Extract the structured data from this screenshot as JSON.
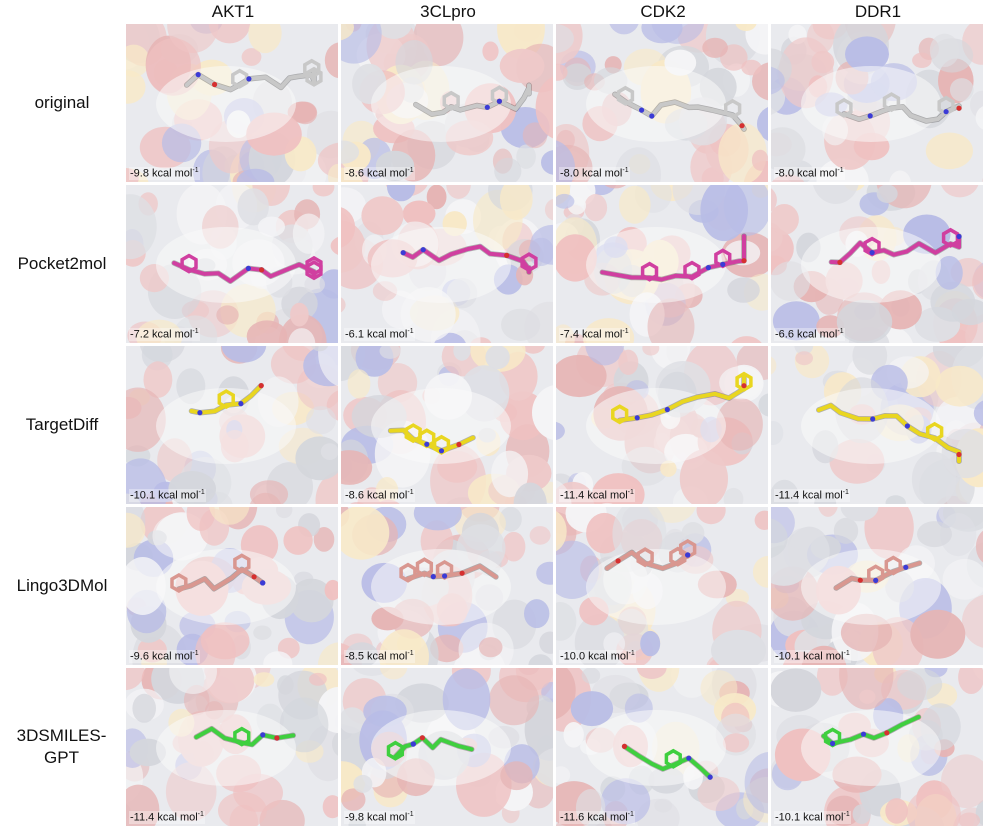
{
  "figure": {
    "targets": [
      "AKT1",
      "3CLpro",
      "CDK2",
      "DDR1"
    ],
    "methods": [
      {
        "label": "original",
        "color": "#c8c8c8",
        "scores": [
          "-9.8",
          "-8.6",
          "-8.0",
          "-8.0"
        ]
      },
      {
        "label": "Pocket2mol",
        "color": "#d03fa0",
        "scores": [
          "-7.2",
          "-6.1",
          "-7.4",
          "-6.6"
        ]
      },
      {
        "label": "TargetDiff",
        "color": "#e9d620",
        "scores": [
          "-10.1",
          "-8.6",
          "-11.4",
          "-11.4"
        ]
      },
      {
        "label": "Lingo3DMol",
        "color": "#d99790",
        "scores": [
          "-9.6",
          "-8.5",
          "-10.0",
          "-10.1"
        ]
      },
      {
        "label": "3DSMILES-GPT",
        "color": "#3fcf3f",
        "scores": [
          "-11.4",
          "-9.8",
          "-11.6",
          "-10.1"
        ]
      }
    ],
    "unit": "kcal mol",
    "unit_exponent": "-1"
  }
}
